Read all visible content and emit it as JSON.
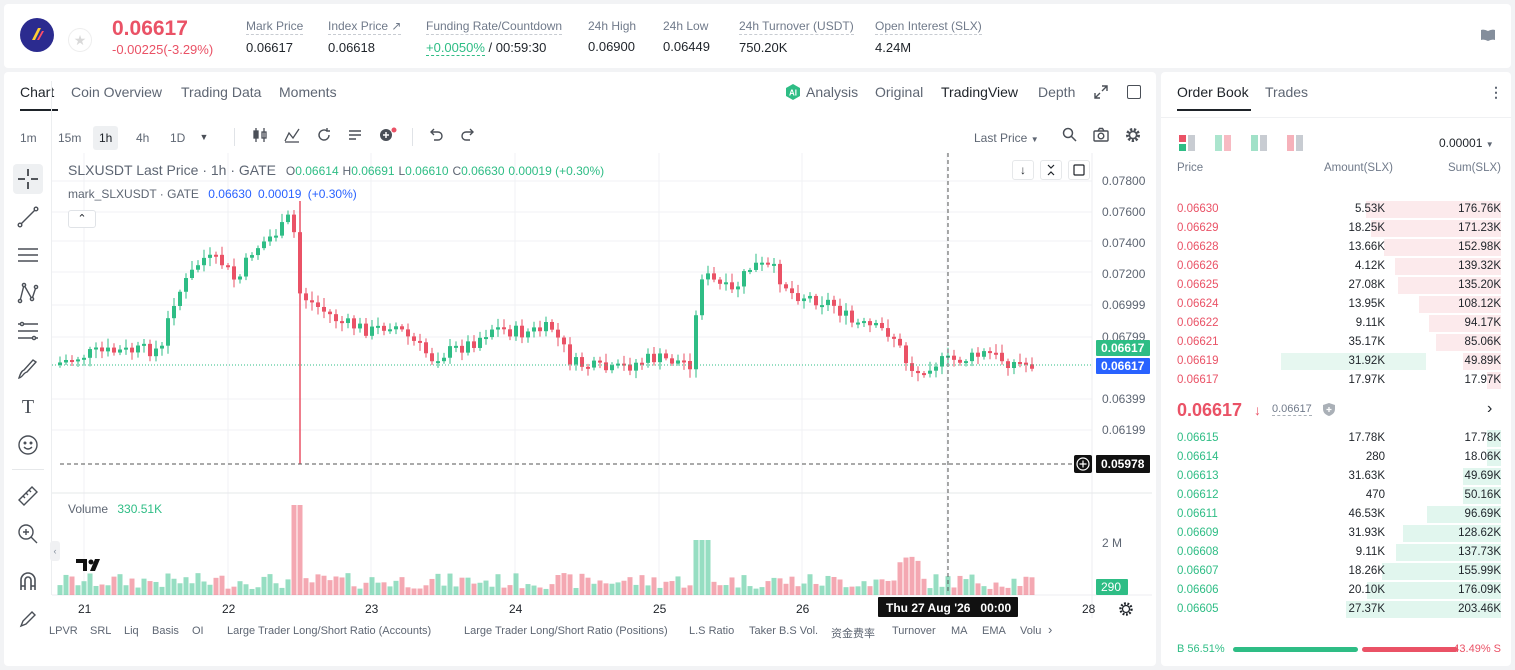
{
  "ticker": {
    "price": "0.06617",
    "change": "-0.00225(-3.29%)",
    "stats": [
      {
        "label": "Mark Price",
        "value": "0.06617"
      },
      {
        "label": "Index Price ↗",
        "value": "0.06618"
      },
      {
        "label": "Funding Rate/Countdown",
        "value_rate": "+0.0050%",
        "value_rest": " / 00:59:30"
      },
      {
        "label": "24h High",
        "value": "0.06900"
      },
      {
        "label": "24h Low",
        "value": "0.06449"
      },
      {
        "label": "24h Turnover (USDT)",
        "value": "750.20K"
      },
      {
        "label": "Open Interest (SLX)",
        "value": "4.24M"
      }
    ]
  },
  "chart_tabs": [
    "Chart",
    "Coin Overview",
    "Trading Data",
    "Moments"
  ],
  "view_tabs": [
    "Analysis",
    "Original",
    "TradingView",
    "Depth"
  ],
  "timeframes": [
    "1m",
    "15m",
    "1h",
    "4h",
    "1D"
  ],
  "last_price_label": "Last Price",
  "legend": {
    "symbol": "SLXUSDT Last Price · 1h · GATE",
    "o": "0.06614",
    "h": "0.06691",
    "l": "0.06610",
    "c": "0.06630",
    "chg": "0.00019 (+0.30%)",
    "mark": "mark_SLXUSDT · GATE",
    "mark_val": "0.06630",
    "mark_chg": "0.00019",
    "mark_pct": "(+0.30%)"
  },
  "volume": {
    "label": "Volume",
    "value": "330.51K",
    "axis": "2 M",
    "last": "290"
  },
  "price_axis": [
    "0.07800",
    "0.07600",
    "0.07400",
    "0.07200",
    "0.06999",
    "0.06799",
    "0.06399",
    "0.06199"
  ],
  "price_tags": {
    "mark": "0.06617",
    "last": "0.06617",
    "cross": "0.05978"
  },
  "x_axis": [
    "21",
    "22",
    "23",
    "24",
    "25",
    "26",
    "28"
  ],
  "crosshair_time": "Thu 27 Aug '26   00:00",
  "indicators": [
    "LPVR",
    "SRL",
    "Liq",
    "Basis",
    "OI",
    "Large Trader Long/Short Ratio (Accounts)",
    "Large Trader Long/Short Ratio (Positions)",
    "L.S Ratio",
    "Taker B.S Vol.",
    "资金费率",
    "Turnover",
    "MA",
    "EMA",
    "Volu"
  ],
  "orderbook": {
    "tabs": [
      "Order Book",
      "Trades"
    ],
    "precision": "0.00001",
    "headers": [
      "Price",
      "Amount(SLX)",
      "Sum(SLX)"
    ],
    "asks": [
      [
        "0.06630",
        "5.53K",
        "176.76K"
      ],
      [
        "0.06629",
        "18.25K",
        "171.23K"
      ],
      [
        "0.06628",
        "13.66K",
        "152.98K"
      ],
      [
        "0.06626",
        "4.12K",
        "139.32K"
      ],
      [
        "0.06625",
        "27.08K",
        "135.20K"
      ],
      [
        "0.06624",
        "13.95K",
        "108.12K"
      ],
      [
        "0.06622",
        "9.11K",
        "94.17K"
      ],
      [
        "0.06621",
        "35.17K",
        "85.06K"
      ],
      [
        "0.06619",
        "31.92K",
        "49.89K"
      ],
      [
        "0.06617",
        "17.97K",
        "17.97K"
      ]
    ],
    "mid": "0.06617",
    "mid_mark": "0.06617",
    "bids": [
      [
        "0.06615",
        "17.78K",
        "17.78K"
      ],
      [
        "0.06614",
        "280",
        "18.06K"
      ],
      [
        "0.06613",
        "31.63K",
        "49.69K"
      ],
      [
        "0.06612",
        "470",
        "50.16K"
      ],
      [
        "0.06611",
        "46.53K",
        "96.69K"
      ],
      [
        "0.06609",
        "31.93K",
        "128.62K"
      ],
      [
        "0.06608",
        "9.11K",
        "137.73K"
      ],
      [
        "0.06607",
        "18.26K",
        "155.99K"
      ],
      [
        "0.06606",
        "20.10K",
        "176.09K"
      ],
      [
        "0.06605",
        "27.37K",
        "203.46K"
      ]
    ],
    "ratio_b": "B 56.51%",
    "ratio_s": "43.49% S",
    "ratio_b_fraction": 0.5651
  },
  "colors": {
    "up": "#2ebd85",
    "down": "#ea5266",
    "accent": "#2962ff"
  }
}
